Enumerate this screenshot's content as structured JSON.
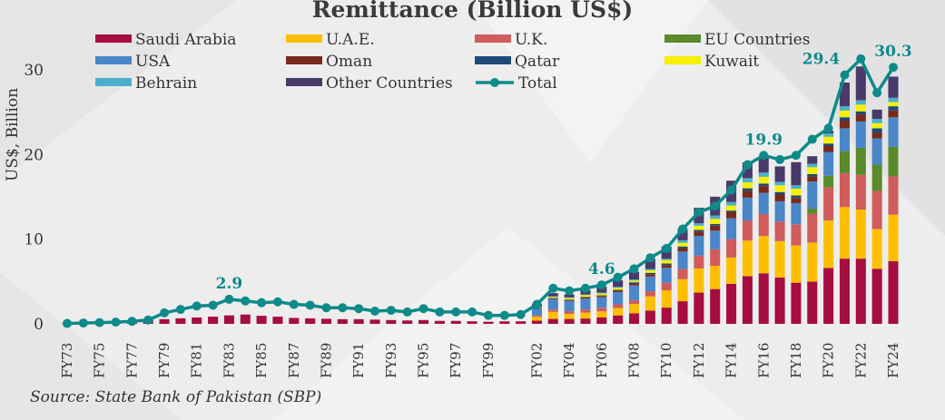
{
  "chart_data": {
    "type": "bar",
    "title": "Remittance (Billion US$)",
    "ylabel": "US$, Billion",
    "xlabel": "",
    "ylim": [
      0,
      31
    ],
    "yticks": [
      0,
      10,
      20,
      30
    ],
    "source": "Source: State Bank of Pakistan (SBP)",
    "categories": [
      "FY73",
      "FY74",
      "FY75",
      "FY76",
      "FY77",
      "FY78",
      "FY79",
      "FY80",
      "FY81",
      "FY82",
      "FY83",
      "FY84",
      "FY85",
      "FY86",
      "FY87",
      "FY88",
      "FY89",
      "FY90",
      "FY91",
      "FY92",
      "FY93",
      "FY94",
      "FY95",
      "FY96",
      "FY97",
      "FY98",
      "FY99",
      "FY00",
      "FY01",
      "FY02",
      "FY03",
      "FY04",
      "FY05",
      "FY06",
      "FY07",
      "FY08",
      "FY09",
      "FY10",
      "FY11",
      "FY12",
      "FY13",
      "FY14",
      "FY15",
      "FY16",
      "FY17",
      "FY18",
      "FY19",
      "FY20",
      "FY21",
      "FY22",
      "FY23",
      "FY24"
    ],
    "xtick_labels": [
      "FY73",
      "FY75",
      "FY77",
      "FY79",
      "FY81",
      "FY83",
      "FY85",
      "FY87",
      "FY89",
      "FY91",
      "FY93",
      "FY95",
      "FY97",
      "FY99",
      "FY02",
      "FY04",
      "FY06",
      "FY08",
      "FY10",
      "FY12",
      "FY14",
      "FY16",
      "FY18",
      "FY20",
      "FY22",
      "FY24"
    ],
    "series": [
      {
        "name": "Saudi Arabia",
        "color": "#a50e3e",
        "values": [
          0.05,
          0.1,
          0.15,
          0.2,
          0.3,
          0.45,
          0.55,
          0.65,
          0.75,
          0.85,
          1.0,
          1.1,
          0.95,
          0.85,
          0.7,
          0.65,
          0.6,
          0.55,
          0.55,
          0.5,
          0.45,
          0.4,
          0.45,
          0.35,
          0.35,
          0.3,
          0.25,
          0.3,
          0.3,
          0.38,
          0.58,
          0.58,
          0.63,
          0.75,
          1.0,
          1.25,
          1.56,
          1.92,
          2.67,
          3.69,
          4.11,
          4.73,
          5.63,
          5.97,
          5.47,
          4.86,
          5.0,
          6.6,
          7.7,
          7.7,
          6.5,
          7.4
        ]
      },
      {
        "name": "U.A.E.",
        "color": "#ffbf00",
        "values": [
          0,
          0,
          0,
          0,
          0,
          0,
          0,
          0,
          0,
          0,
          0,
          0,
          0,
          0,
          0,
          0,
          0,
          0,
          0,
          0,
          0,
          0,
          0,
          0,
          0,
          0,
          0,
          0,
          0,
          0.46,
          0.84,
          0.6,
          0.7,
          0.72,
          0.87,
          1.09,
          1.69,
          2.04,
          2.6,
          2.85,
          2.75,
          3.1,
          4.2,
          4.4,
          4.3,
          4.4,
          4.6,
          5.6,
          6.1,
          5.8,
          4.7,
          5.5
        ]
      },
      {
        "name": "U.K.",
        "color": "#d05c5c",
        "values": [
          0,
          0,
          0,
          0,
          0,
          0,
          0,
          0,
          0,
          0,
          0,
          0,
          0,
          0,
          0,
          0,
          0,
          0,
          0,
          0,
          0,
          0,
          0,
          0,
          0,
          0,
          0,
          0,
          0,
          0.15,
          0.27,
          0.31,
          0.37,
          0.44,
          0.43,
          0.46,
          0.6,
          0.88,
          1.2,
          1.52,
          1.95,
          2.18,
          2.38,
          2.6,
          2.3,
          2.5,
          3.4,
          3.9,
          4.0,
          4.1,
          4.5,
          4.5
        ]
      },
      {
        "name": "EU Countries",
        "color": "#5a8a2a",
        "values": [
          0,
          0,
          0,
          0,
          0,
          0,
          0,
          0,
          0,
          0,
          0,
          0,
          0,
          0,
          0,
          0,
          0,
          0,
          0,
          0,
          0,
          0,
          0,
          0,
          0,
          0,
          0,
          0,
          0,
          0,
          0,
          0,
          0,
          0,
          0,
          0,
          0,
          0,
          0,
          0,
          0,
          0,
          0,
          0,
          0,
          0,
          0.6,
          1.4,
          2.6,
          3.2,
          3.1,
          3.5
        ]
      },
      {
        "name": "USA",
        "color": "#4a86c8",
        "values": [
          0,
          0,
          0,
          0,
          0,
          0,
          0,
          0,
          0,
          0,
          0,
          0,
          0,
          0,
          0,
          0,
          0,
          0,
          0,
          0,
          0,
          0,
          0,
          0,
          0,
          0,
          0,
          0,
          0,
          0.78,
          1.24,
          1.22,
          1.29,
          1.24,
          1.46,
          1.76,
          1.74,
          1.77,
          2.07,
          2.33,
          2.19,
          2.47,
          2.7,
          2.5,
          2.4,
          2.5,
          3.2,
          2.8,
          2.7,
          3.1,
          3.1,
          3.5
        ]
      },
      {
        "name": "Oman",
        "color": "#7a2a1a",
        "values": [
          0,
          0,
          0,
          0,
          0,
          0,
          0,
          0,
          0,
          0,
          0,
          0,
          0,
          0,
          0,
          0,
          0,
          0,
          0,
          0,
          0,
          0,
          0,
          0,
          0,
          0,
          0,
          0,
          0,
          0.06,
          0.09,
          0.11,
          0.12,
          0.14,
          0.16,
          0.21,
          0.28,
          0.33,
          0.4,
          0.5,
          0.6,
          0.7,
          0.8,
          0.8,
          0.8,
          0.6,
          0.6,
          0.7,
          0.9,
          0.8,
          0.7,
          0.8
        ]
      },
      {
        "name": "Qatar",
        "color": "#1e4a78",
        "values": [
          0,
          0,
          0,
          0,
          0,
          0,
          0,
          0,
          0,
          0,
          0,
          0,
          0,
          0,
          0,
          0,
          0,
          0,
          0,
          0,
          0,
          0,
          0,
          0,
          0,
          0,
          0,
          0,
          0,
          0.03,
          0.05,
          0.06,
          0.07,
          0.08,
          0.1,
          0.14,
          0.16,
          0.19,
          0.2,
          0.2,
          0.2,
          0.2,
          0.3,
          0.3,
          0.3,
          0.3,
          0.3,
          0.3,
          0.4,
          0.4,
          0.5,
          0.5
        ]
      },
      {
        "name": "Kuwait",
        "color": "#f5f000",
        "values": [
          0,
          0,
          0,
          0,
          0,
          0,
          0,
          0,
          0,
          0,
          0,
          0,
          0,
          0,
          0,
          0,
          0,
          0,
          0,
          0,
          0,
          0,
          0,
          0,
          0,
          0,
          0,
          0,
          0,
          0.07,
          0.12,
          0.17,
          0.21,
          0.22,
          0.23,
          0.2,
          0.3,
          0.4,
          0.43,
          0.5,
          0.6,
          0.6,
          0.7,
          0.8,
          0.8,
          0.8,
          0.8,
          0.8,
          0.8,
          0.8,
          0.6,
          0.5
        ]
      },
      {
        "name": "Behrain",
        "color": "#4ab0cc",
        "values": [
          0,
          0,
          0,
          0,
          0,
          0,
          0,
          0,
          0,
          0,
          0,
          0,
          0,
          0,
          0,
          0,
          0,
          0,
          0,
          0,
          0,
          0,
          0,
          0,
          0,
          0,
          0,
          0,
          0,
          0.04,
          0.05,
          0.07,
          0.08,
          0.1,
          0.12,
          0.14,
          0.15,
          0.15,
          0.3,
          0.3,
          0.4,
          0.4,
          0.5,
          0.5,
          0.4,
          0.4,
          0.4,
          0.4,
          0.5,
          0.5,
          0.5,
          0.5
        ]
      },
      {
        "name": "Other Countries",
        "color": "#4a3a6a",
        "values": [
          0,
          0,
          0,
          0,
          0,
          0,
          0,
          0,
          0,
          0,
          0,
          0,
          0,
          0,
          0,
          0,
          0,
          0,
          0,
          0,
          0,
          0,
          0,
          0,
          0,
          0,
          0,
          0,
          0,
          0.42,
          0.39,
          0.37,
          0.48,
          0.7,
          0.77,
          0.9,
          1.2,
          1.45,
          1.33,
          1.82,
          2.22,
          2.53,
          1.87,
          1.82,
          1.83,
          2.74,
          0.9,
          0.3,
          2.8,
          4.0,
          1.1,
          2.5
        ]
      }
    ],
    "total": {
      "name": "Total",
      "color": "#0e8a8a",
      "values": [
        0.05,
        0.1,
        0.15,
        0.2,
        0.3,
        0.45,
        1.3,
        1.7,
        2.1,
        2.2,
        2.9,
        2.7,
        2.5,
        2.6,
        2.3,
        2.2,
        1.9,
        1.9,
        1.8,
        1.5,
        1.6,
        1.4,
        1.8,
        1.4,
        1.4,
        1.4,
        1.0,
        1.0,
        1.1,
        2.3,
        4.2,
        3.9,
        4.2,
        4.6,
        5.5,
        6.5,
        7.8,
        8.9,
        11.2,
        13.2,
        13.9,
        15.8,
        18.8,
        19.9,
        19.4,
        19.9,
        21.8,
        23.1,
        29.4,
        31.3,
        27.3,
        30.3
      ]
    },
    "annotations": [
      {
        "category": "FY83",
        "text": "2.9"
      },
      {
        "category": "FY06",
        "text": "4.6"
      },
      {
        "category": "FY16",
        "text": "19.9"
      },
      {
        "category": "FY21",
        "text": "29.4"
      },
      {
        "category": "FY24",
        "text": "30.3"
      }
    ]
  }
}
